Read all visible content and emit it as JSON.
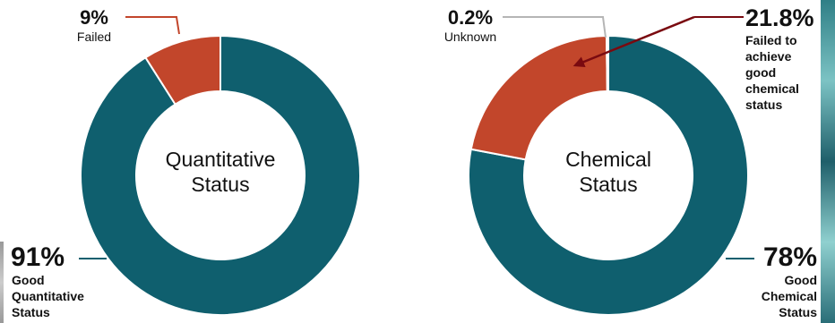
{
  "chart_data": [
    {
      "type": "donut",
      "center_label": [
        "Quantitative",
        "Status"
      ],
      "slices": [
        {
          "value": 91,
          "display": "91%",
          "label": [
            "Good",
            "Quantitative",
            "Status"
          ]
        },
        {
          "value": 9,
          "display": "9%",
          "label": [
            "Failed"
          ]
        }
      ]
    },
    {
      "type": "donut",
      "center_label": [
        "Chemical",
        "Status"
      ],
      "slices": [
        {
          "value": 78,
          "display": "78%",
          "label": [
            "Good",
            "Chemical",
            "Status"
          ]
        },
        {
          "value": 21.8,
          "display": "21.8%",
          "label": [
            "Failed to",
            "achieve",
            "good",
            "chemical",
            "status"
          ]
        },
        {
          "value": 0.2,
          "display": "0.2%",
          "label": [
            "Unknown"
          ]
        }
      ]
    }
  ],
  "colors": {
    "good": "#0f5f6e",
    "failed": "#c2462b",
    "unknown": "#bfbfbf",
    "leader_good": "#0f5f6e",
    "leader_failed": "#c2462b",
    "leader_unknown": "#b5b5b5",
    "arrow": "#7a0a10",
    "text": "#111111"
  }
}
